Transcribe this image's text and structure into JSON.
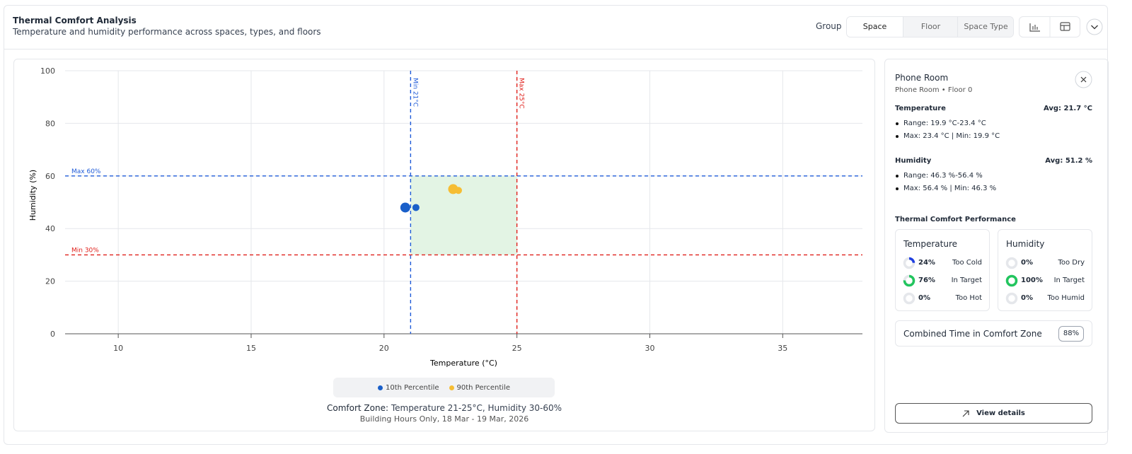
{
  "header": {
    "title": "Thermal Comfort Analysis",
    "subtitle": "Temperature and humidity performance across spaces, types, and floors"
  },
  "controls": {
    "group_label": "Group",
    "options": [
      "Space",
      "Floor",
      "Space Type"
    ],
    "selected": "Space"
  },
  "chart_data": {
    "type": "scatter",
    "x_label": "Temperature (°C)",
    "y_label": "Humidity (%)",
    "xlim": [
      8,
      38
    ],
    "xticks": [
      10,
      15,
      20,
      25,
      30,
      35
    ],
    "ylim": [
      0,
      100
    ],
    "yticks": [
      0,
      20,
      40,
      60,
      80,
      100
    ],
    "grid": true,
    "series": [
      {
        "name": "10th Percentile",
        "color": "#1a5fc9",
        "x": [
          20.8,
          21.2
        ],
        "values": [
          48,
          48
        ]
      },
      {
        "name": "90th Percentile",
        "color": "#f6bd33",
        "x": [
          22.6,
          22.8
        ],
        "values": [
          55,
          54.5
        ]
      }
    ],
    "reference_lines": [
      {
        "axis": "x",
        "value": 21,
        "label": "Min 21°C",
        "color": "#1f5bd8"
      },
      {
        "axis": "x",
        "value": 25,
        "label": "Max 25°C",
        "color": "#e0201b"
      },
      {
        "axis": "y",
        "value": 60,
        "label": "Max 60%",
        "color": "#1f5bd8"
      },
      {
        "axis": "y",
        "value": 30,
        "label": "Min 30%",
        "color": "#e0201b"
      }
    ],
    "zone_color": "#e3f4e4",
    "footer": {
      "label": "Comfort Zone:",
      "text": "Temperature 21-25°C, Humidity 30-60%",
      "note": "Building Hours Only, 18 Mar - 19 Mar, 2026"
    }
  },
  "panel": {
    "title": "Phone Room",
    "subtitle": "Phone Room • Floor 0",
    "temperature": {
      "label": "Temperature",
      "avg": "Avg: 21.7 °C",
      "items": [
        "Range: 19.9 °C-23.4 °C",
        "Max: 23.4 °C | Min: 19.9 °C"
      ]
    },
    "humidity": {
      "label": "Humidity",
      "avg": "Avg: 51.2 %",
      "items": [
        "Range: 46.3 %-56.4 %",
        "Max: 56.4 % | Min: 46.3 %"
      ]
    },
    "performance_title": "Thermal Comfort Performance",
    "cards": [
      {
        "title": "Temperature",
        "rows": [
          {
            "name": "Too Cold",
            "value": 24,
            "value_label": "24%",
            "color": "#1f3fe0"
          },
          {
            "name": "In Target",
            "value": 76,
            "value_label": "76%",
            "color": "#22c55e"
          },
          {
            "name": "Too Hot",
            "value": 0,
            "value_label": "0%",
            "color": "#e11d48"
          }
        ]
      },
      {
        "title": "Humidity",
        "rows": [
          {
            "name": "Too Dry",
            "value": 0,
            "value_label": "0%",
            "color": "#f59e0b"
          },
          {
            "name": "In Target",
            "value": 100,
            "value_label": "100%",
            "color": "#22c55e"
          },
          {
            "name": "Too Humid",
            "value": 0,
            "value_label": "0%",
            "color": "#0ea5e9"
          }
        ]
      }
    ],
    "combined": {
      "label": "Combined Time in Comfort Zone",
      "value": 88,
      "value_label": "88%"
    },
    "button": "View details"
  }
}
